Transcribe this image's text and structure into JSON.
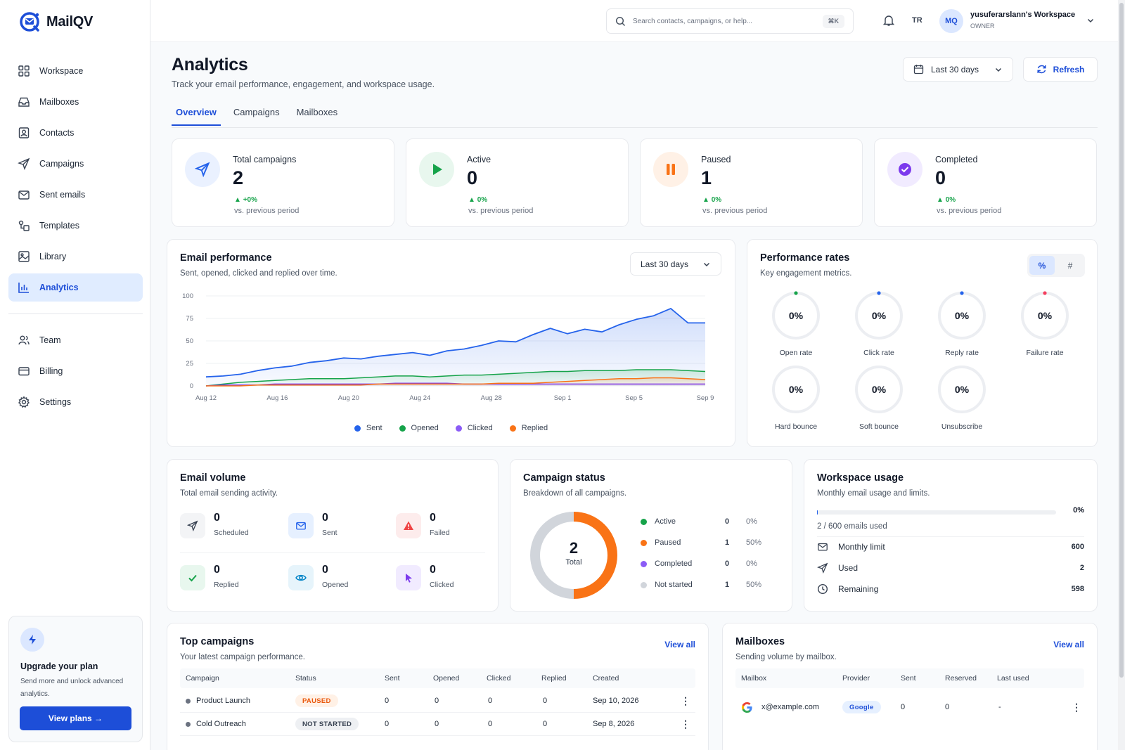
{
  "app": {
    "name": "MailQV"
  },
  "sidebar": {
    "items": [
      {
        "label": "Workspace",
        "icon": "grid-icon"
      },
      {
        "label": "Mailboxes",
        "icon": "inbox-icon"
      },
      {
        "label": "Contacts",
        "icon": "contact-icon"
      },
      {
        "label": "Campaigns",
        "icon": "send-icon"
      },
      {
        "label": "Sent emails",
        "icon": "mail-sent-icon"
      },
      {
        "label": "Templates",
        "icon": "template-icon"
      },
      {
        "label": "Library",
        "icon": "image-icon"
      },
      {
        "label": "Analytics",
        "icon": "bar-chart-icon",
        "active": true
      }
    ],
    "items2": [
      {
        "label": "Team",
        "icon": "users-icon"
      },
      {
        "label": "Billing",
        "icon": "card-icon"
      },
      {
        "label": "Settings",
        "icon": "gear-icon"
      }
    ],
    "upgrade": {
      "title": "Upgrade your plan",
      "desc": "Send more and unlock advanced analytics.",
      "button": "View plans →"
    }
  },
  "header": {
    "search_placeholder": "Search contacts, campaigns, or help...",
    "shortcut": "⌘K",
    "lang": "TR",
    "avatar": "MQ",
    "workspace": "yusuferarslann's Workspace",
    "role": "OWNER"
  },
  "page": {
    "title": "Analytics",
    "subtitle": "Track your email performance, engagement, and workspace usage.",
    "range": "Last 30 days",
    "refresh": "Refresh",
    "tabs": [
      "Overview",
      "Campaigns",
      "Mailboxes"
    ]
  },
  "stats": [
    {
      "label": "Total campaigns",
      "value": "2",
      "delta": "+0%",
      "note": "vs. previous period",
      "color": "#2563eb"
    },
    {
      "label": "Active",
      "value": "0",
      "delta": "0%",
      "note": "vs. previous period",
      "color": "#16a34a"
    },
    {
      "label": "Paused",
      "value": "1",
      "delta": "0%",
      "note": "vs. previous period",
      "color": "#f97316"
    },
    {
      "label": "Completed",
      "value": "0",
      "delta": "0%",
      "note": "vs. previous period",
      "color": "#7c3aed"
    }
  ],
  "performance": {
    "title": "Email performance",
    "subtitle": "Sent, opened, clicked and replied over time.",
    "range": "Last 30 days"
  },
  "chart_data": {
    "type": "area",
    "title": "Email performance",
    "ylim": [
      0,
      100
    ],
    "yticks": [
      "100",
      "75",
      "50",
      "25",
      "0"
    ],
    "xticks": [
      "Aug 12",
      "Aug 16",
      "Aug 20",
      "Aug 24",
      "Aug 28",
      "Sep 1",
      "Sep 5",
      "Sep 9"
    ],
    "x": [
      0,
      1,
      2,
      3,
      4,
      5,
      6,
      7,
      8,
      9,
      10,
      11,
      12,
      13,
      14,
      15,
      16,
      17,
      18,
      19,
      20,
      21,
      22,
      23,
      24,
      25,
      26,
      27,
      28,
      29
    ],
    "series": [
      {
        "name": "Sent",
        "color": "#2563eb",
        "values": [
          10,
          11,
          13,
          17,
          20,
          22,
          26,
          28,
          31,
          30,
          33,
          35,
          37,
          34,
          39,
          41,
          45,
          50,
          49,
          57,
          64,
          58,
          63,
          60,
          68,
          74,
          78,
          86,
          70,
          70
        ]
      },
      {
        "name": "Opened",
        "color": "#16a34a",
        "values": [
          0,
          2,
          4,
          5,
          6,
          7,
          8,
          8,
          8,
          9,
          10,
          11,
          11,
          10,
          11,
          12,
          12,
          13,
          14,
          15,
          16,
          16,
          17,
          17,
          17,
          18,
          18,
          18,
          17,
          16
        ]
      },
      {
        "name": "Clicked",
        "color": "#7c3aed",
        "values": [
          0,
          1,
          1,
          1,
          2,
          2,
          2,
          2,
          2,
          2,
          2,
          3,
          3,
          3,
          3,
          2,
          2,
          2,
          2,
          2,
          2,
          2,
          2,
          2,
          2,
          2,
          2,
          2,
          2,
          2
        ]
      },
      {
        "name": "Replied",
        "color": "#f97316",
        "values": [
          0,
          0,
          0,
          1,
          1,
          1,
          1,
          1,
          1,
          1,
          2,
          2,
          2,
          2,
          2,
          2,
          2,
          3,
          3,
          3,
          4,
          5,
          6,
          7,
          8,
          8,
          9,
          9,
          8,
          7
        ]
      }
    ]
  },
  "rates": {
    "title": "Performance rates",
    "subtitle": "Key engagement metrics.",
    "toggle": [
      "%",
      "#"
    ],
    "items": [
      {
        "label": "Open rate",
        "value": "0%",
        "color": "#16a34a"
      },
      {
        "label": "Click rate",
        "value": "0%",
        "color": "#2563eb"
      },
      {
        "label": "Reply rate",
        "value": "0%",
        "color": "#2563eb"
      },
      {
        "label": "Failure rate",
        "value": "0%",
        "color": "#f43f5e"
      },
      {
        "label": "Hard bounce",
        "value": "0%"
      },
      {
        "label": "Soft bounce",
        "value": "0%"
      },
      {
        "label": "Unsubscribe",
        "value": "0%"
      }
    ]
  },
  "volume": {
    "title": "Email volume",
    "subtitle": "Total email sending activity.",
    "items": [
      {
        "label": "Scheduled",
        "value": "0",
        "icon": "send-icon"
      },
      {
        "label": "Sent",
        "value": "0",
        "icon": "mail-icon"
      },
      {
        "label": "Failed",
        "value": "0",
        "icon": "alert-icon"
      },
      {
        "label": "Replied",
        "value": "0",
        "icon": "check-icon"
      },
      {
        "label": "Opened",
        "value": "0",
        "icon": "eye-icon"
      },
      {
        "label": "Clicked",
        "value": "0",
        "icon": "cursor-icon"
      }
    ]
  },
  "campaign_status": {
    "title": "Campaign status",
    "subtitle": "Breakdown of all campaigns.",
    "total": "2",
    "total_label": "Total",
    "rows": [
      {
        "label": "Active",
        "count": "0",
        "pct": "0%",
        "color": "#16a34a"
      },
      {
        "label": "Paused",
        "count": "1",
        "pct": "50%",
        "color": "#f97316"
      },
      {
        "label": "Completed",
        "count": "0",
        "pct": "0%",
        "color": "#8b5cf6"
      },
      {
        "label": "Not started",
        "count": "1",
        "pct": "50%",
        "color": "#d1d5db"
      }
    ]
  },
  "usage": {
    "title": "Workspace usage",
    "subtitle": "Monthly email usage and limits.",
    "pct": "0%",
    "used_text": "2 / 600 emails used",
    "rows": [
      {
        "label": "Monthly limit",
        "value": "600",
        "icon": "mail-icon"
      },
      {
        "label": "Used",
        "value": "2",
        "icon": "send-icon"
      },
      {
        "label": "Remaining",
        "value": "598",
        "icon": "clock-icon"
      }
    ]
  },
  "top_campaigns": {
    "title": "Top campaigns",
    "subtitle": "Your latest campaign performance.",
    "view_all": "View all",
    "columns": [
      "Campaign",
      "Status",
      "Sent",
      "Opened",
      "Clicked",
      "Replied",
      "Created"
    ],
    "rows": [
      {
        "name": "Product Launch",
        "status": "PAUSED",
        "sent": "0",
        "opened": "0",
        "clicked": "0",
        "replied": "0",
        "created": "Sep 10, 2026"
      },
      {
        "name": "Cold Outreach",
        "status": "NOT STARTED",
        "sent": "0",
        "opened": "0",
        "clicked": "0",
        "replied": "0",
        "created": "Sep 8, 2026"
      }
    ]
  },
  "mailboxes": {
    "title": "Mailboxes",
    "subtitle": "Sending volume by mailbox.",
    "view_all": "View all",
    "columns": [
      "Mailbox",
      "Provider",
      "Sent",
      "Reserved",
      "Last used"
    ],
    "rows": [
      {
        "email": "x@example.com",
        "provider": "Google",
        "sent": "0",
        "reserved": "0",
        "last_used": "-"
      }
    ]
  }
}
